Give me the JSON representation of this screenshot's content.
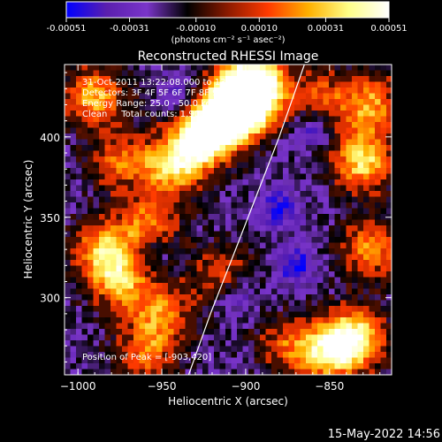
{
  "chart_data": {
    "type": "heatmap",
    "title": "Reconstructed RHESSI Image",
    "colorbar": {
      "ticks": [
        "-0.00051",
        "-0.00031",
        "-0.00010",
        "0.00010",
        "0.00031",
        "0.00051"
      ],
      "range": [
        -0.00051,
        0.00051
      ],
      "unit_label": "(photons cm⁻² s⁻¹ asec⁻²)",
      "colormap": [
        "#0000ff",
        "#5a1fae",
        "#7a35c9",
        "#000000",
        "#8b1a00",
        "#ff3a00",
        "#ffb000",
        "#ffff88",
        "#ffffff"
      ]
    },
    "xlabel": "Heliocentric X (arcsec)",
    "ylabel": "Heliocentric Y (arcsec)",
    "xlim": [
      -1008,
      -813
    ],
    "ylim": [
      252,
      445
    ],
    "xticks": [
      -1000,
      -950,
      -900,
      -850
    ],
    "xtick_labels": [
      "−1000",
      "−950",
      "−900",
      "−850"
    ],
    "yticks": [
      300,
      350,
      400
    ],
    "ytick_labels": [
      "300",
      "350",
      "400"
    ],
    "annotations": [
      "31-Oct-2011 13:22:08.000 to 13:28:08.000",
      "Detectors: 3F 4F 5F 6F 7F 8F 9F 10",
      "Energy Range: 25.0 - 50.0 keV",
      "Clean     Total counts: 1.90e+04"
    ],
    "peak_label": "Position of Peak = [-903,420]",
    "peak": [
      -903,
      420
    ],
    "limb": [
      [
        -934,
        252
      ],
      [
        -921,
        290
      ],
      [
        -906,
        330
      ],
      [
        -893,
        365
      ],
      [
        -880,
        400
      ],
      [
        -865,
        445
      ]
    ],
    "bright_regions": [
      {
        "x": -895,
        "y": 433,
        "intensity": 1.0
      },
      {
        "x": -903,
        "y": 420,
        "intensity": 1.0
      },
      {
        "x": -915,
        "y": 410,
        "intensity": 0.85
      },
      {
        "x": -930,
        "y": 395,
        "intensity": 0.7
      },
      {
        "x": -945,
        "y": 380,
        "intensity": 0.55
      },
      {
        "x": -990,
        "y": 425,
        "intensity": 0.6
      },
      {
        "x": -975,
        "y": 385,
        "intensity": 0.45
      },
      {
        "x": -985,
        "y": 330,
        "intensity": 0.6
      },
      {
        "x": -975,
        "y": 310,
        "intensity": 0.55
      },
      {
        "x": -958,
        "y": 345,
        "intensity": 0.5
      },
      {
        "x": -950,
        "y": 290,
        "intensity": 0.5
      },
      {
        "x": -960,
        "y": 265,
        "intensity": 0.45
      },
      {
        "x": -835,
        "y": 275,
        "intensity": 0.75
      },
      {
        "x": -850,
        "y": 265,
        "intensity": 0.6
      },
      {
        "x": -825,
        "y": 330,
        "intensity": 0.55
      },
      {
        "x": -830,
        "y": 385,
        "intensity": 0.7
      },
      {
        "x": -825,
        "y": 420,
        "intensity": 0.55
      },
      {
        "x": -855,
        "y": 425,
        "intensity": 0.4
      },
      {
        "x": -875,
        "y": 270,
        "intensity": 0.4
      },
      {
        "x": -915,
        "y": 315,
        "intensity": 0.35
      }
    ],
    "dark_regions": [
      {
        "x": -880,
        "y": 355,
        "depth": 0.6
      },
      {
        "x": -870,
        "y": 320,
        "depth": 0.6
      },
      {
        "x": -860,
        "y": 405,
        "depth": 0.5
      },
      {
        "x": -905,
        "y": 300,
        "depth": 0.45
      },
      {
        "x": -940,
        "y": 425,
        "depth": 0.45
      },
      {
        "x": -955,
        "y": 330,
        "depth": 0.4
      }
    ]
  },
  "footer": {
    "timestamp": "15-May-2022 14:56"
  }
}
